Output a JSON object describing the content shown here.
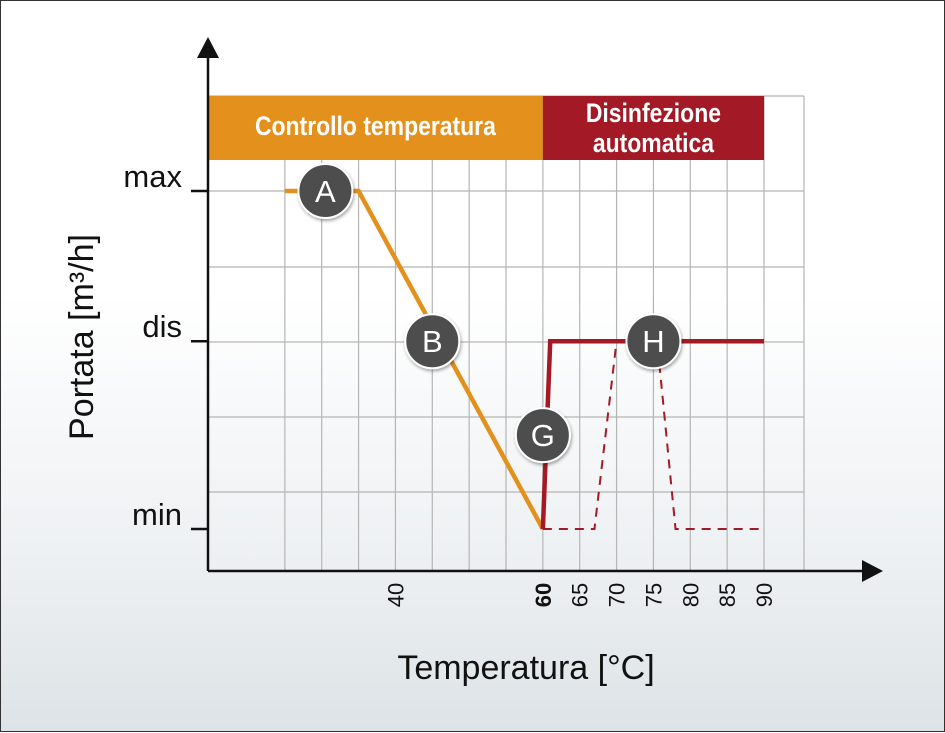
{
  "chart_data": {
    "type": "line",
    "xlabel": "Temperatura [°C]",
    "ylabel": "Portata [m³/h]",
    "xlim": [
      20,
      90
    ],
    "y_levels": [
      {
        "key": "min",
        "label": "min",
        "value": 0
      },
      {
        "key": "dis",
        "label": "dis",
        "value": 1
      },
      {
        "key": "max",
        "label": "max",
        "value": 1.8
      }
    ],
    "ylim": [
      -0.2,
      2.6
    ],
    "x_ticks": [
      {
        "value": 40,
        "label": "40",
        "bold": false
      },
      {
        "value": 60,
        "label": "60",
        "bold": true
      },
      {
        "value": 65,
        "label": "65",
        "bold": false
      },
      {
        "value": 70,
        "label": "70",
        "bold": false
      },
      {
        "value": 75,
        "label": "75",
        "bold": false
      },
      {
        "value": 80,
        "label": "80",
        "bold": false
      },
      {
        "value": 85,
        "label": "85",
        "bold": false
      },
      {
        "value": 90,
        "label": "90",
        "bold": false
      }
    ],
    "regions": [
      {
        "label": "Controllo temperatura",
        "x_start": 20,
        "x_end": 60,
        "color": "#e3911c"
      },
      {
        "label": "Disinfezione automatica",
        "lines": [
          "Disinfezione",
          "automatica"
        ],
        "x_start": 60,
        "x_end": 90,
        "color": "#a31925"
      }
    ],
    "series": [
      {
        "color": "#e3911c",
        "style": "solid",
        "points": [
          [
            25,
            1.8
          ],
          [
            35,
            1.8
          ],
          [
            60,
            0
          ]
        ]
      },
      {
        "color": "#a31925",
        "style": "solid",
        "points": [
          [
            60,
            0
          ],
          [
            61,
            1
          ],
          [
            90,
            1
          ]
        ]
      },
      {
        "color": "#a31925",
        "style": "dashed",
        "points": [
          [
            60,
            0
          ],
          [
            67,
            0
          ],
          [
            70,
            1
          ],
          [
            75.5,
            1
          ],
          [
            78,
            0
          ],
          [
            90,
            0
          ]
        ]
      }
    ],
    "markers": [
      {
        "label": "A",
        "x": 30.5,
        "y": 1.8
      },
      {
        "label": "B",
        "x": 45,
        "y": 1
      },
      {
        "label": "G",
        "x": 60,
        "y": 0.5
      },
      {
        "label": "H",
        "x": 75,
        "y": 1
      }
    ],
    "grid": true
  }
}
